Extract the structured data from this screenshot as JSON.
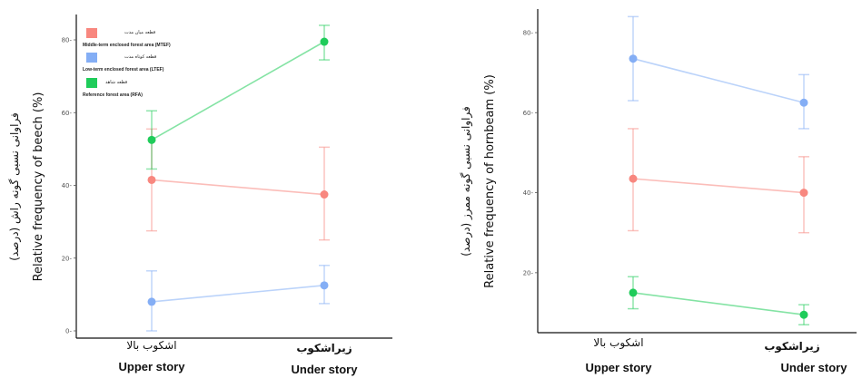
{
  "colors": {
    "MTEF": "#f8877f",
    "LTEF": "#84aef5",
    "RFA": "#1fcc5a",
    "axis": "#111111"
  },
  "chart_data": [
    {
      "type": "line",
      "ylabel_fa": "فراوانی نسبی گونه راش (درصد)",
      "ylabel": "Relative frequency of beech (%)",
      "ylim": [
        0,
        85
      ],
      "yticks": [
        0,
        20,
        40,
        60,
        80
      ],
      "categories_fa": [
        "اشکوب بالا",
        "زیراشکوب"
      ],
      "categories": [
        "Upper story",
        "Under story"
      ],
      "legend": {
        "position": "top-left",
        "entries": [
          {
            "key": "MTEF",
            "label_fa": "قطعه میان مدت",
            "label": "Middle-term enclosed forest area (MTEF)"
          },
          {
            "key": "LTEF",
            "label_fa": "قطعه کوتاه مدت",
            "label": "Low-term enclosed forest area (LTEF)"
          },
          {
            "key": "RFA",
            "label_fa": "قطعه شاهد",
            "label": "Reference forest area (RFA)"
          }
        ]
      },
      "series": [
        {
          "key": "MTEF",
          "values": [
            41.5,
            37.5
          ],
          "lower": [
            27.5,
            25
          ],
          "upper": [
            55.5,
            50.5
          ]
        },
        {
          "key": "LTEF",
          "values": [
            8,
            12.5
          ],
          "lower": [
            0,
            7.5
          ],
          "upper": [
            16.5,
            18
          ]
        },
        {
          "key": "RFA",
          "values": [
            52.5,
            79.5
          ],
          "lower": [
            44.5,
            74.5
          ],
          "upper": [
            60.5,
            84
          ]
        }
      ]
    },
    {
      "type": "line",
      "ylabel_fa": "فراوانی نسبی گونه ممرز (درصد)",
      "ylabel": "Relative frequency of hornbeam (%)",
      "ylim": [
        11,
        82
      ],
      "yticks": [
        20,
        40,
        60,
        80
      ],
      "categories_fa": [
        "اشکوب بالا",
        "زیراشکوب"
      ],
      "categories": [
        "Upper story",
        "Under story"
      ],
      "series": [
        {
          "key": "MTEF",
          "values": [
            43.5,
            40
          ],
          "lower": [
            30.5,
            30
          ],
          "upper": [
            56,
            49
          ]
        },
        {
          "key": "LTEF",
          "values": [
            73.5,
            62.5
          ],
          "lower": [
            63,
            56
          ],
          "upper": [
            84,
            69.5
          ]
        },
        {
          "key": "RFA",
          "values": [
            15,
            9.5
          ],
          "lower": [
            11,
            7
          ],
          "upper": [
            19,
            12
          ]
        }
      ]
    }
  ]
}
